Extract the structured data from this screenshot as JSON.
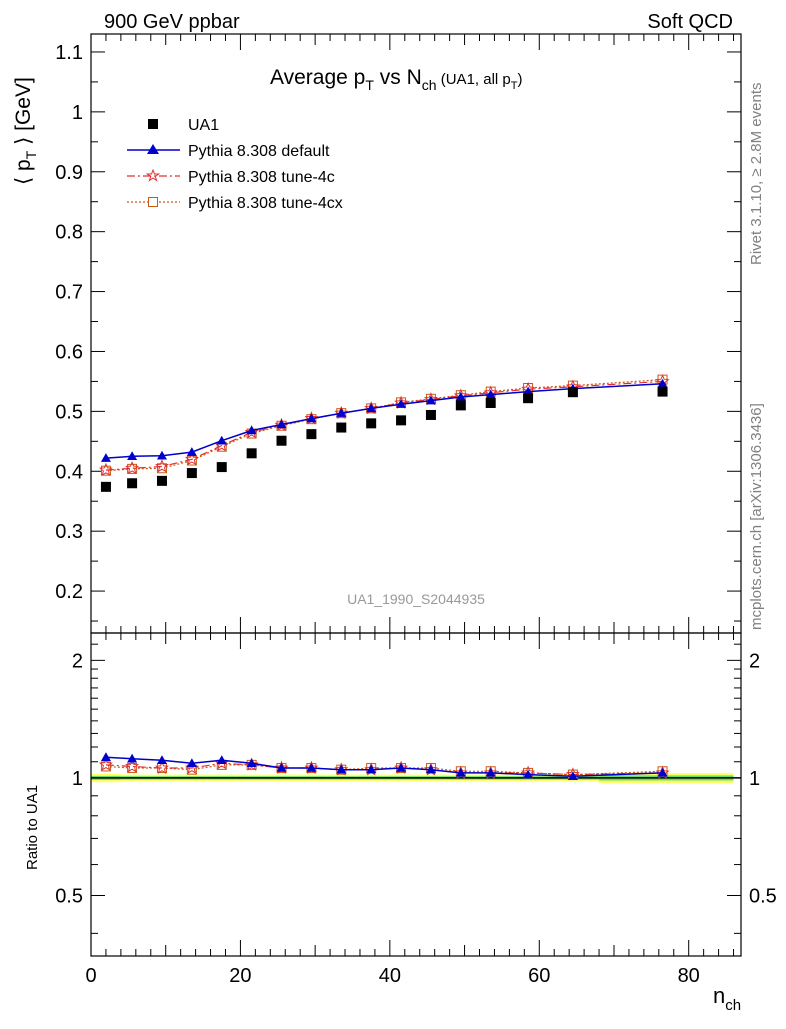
{
  "header": {
    "left": "900 GeV ppbar",
    "right": "Soft QCD"
  },
  "side_labels": {
    "rivet": "Rivet 3.1.10, ≥ 2.8M events",
    "mcplots": "mcplots.cern.ch [arXiv:1306.3436]"
  },
  "title": {
    "main_a": "Average p",
    "main_sub_t": "T",
    "main_b": " vs N",
    "main_sub_ch": "ch",
    "small_a": " (UA1, all p",
    "small_sub_t": "T",
    "small_b": ")"
  },
  "watermark": "UA1_1990_S2044935",
  "axes": {
    "ylabel_top_main": "⟨ p",
    "ylabel_top_sub": "T",
    "ylabel_top_tail": " ⟩ [GeV]",
    "ylabel_bottom": "Ratio to UA1",
    "xlabel_main": "n",
    "xlabel_sub": "ch",
    "xlim": [
      0,
      87
    ],
    "ylim_top": [
      0.13,
      1.13
    ],
    "ylim_bottom": [
      0.35,
      2.35
    ],
    "y_ticks_top": [
      "0.2",
      "0.3",
      "0.4",
      "0.5",
      "0.6",
      "0.7",
      "0.8",
      "0.9",
      "1",
      "1.1"
    ],
    "y_ticks_bottom": [
      "0.5",
      "1",
      "2"
    ],
    "x_ticks": [
      "0",
      "20",
      "40",
      "60",
      "80"
    ]
  },
  "legend": {
    "ua1": "UA1",
    "default": "Pythia 8.308 default",
    "tune4c": "Pythia 8.308 tune-4c",
    "tune4cx": "Pythia 8.308 tune-4cx"
  },
  "colors": {
    "data": "#000000",
    "default": "#0000cc",
    "tune4c": "#e03030",
    "tune4cx": "#c85a14",
    "band_outer": "#ffff66",
    "band_inner": "#66dd66"
  },
  "chart_data": {
    "type": "scatter",
    "x": [
      2,
      5.5,
      9.5,
      13.5,
      17.5,
      21.5,
      25.5,
      29.5,
      33.5,
      37.5,
      41.5,
      45.5,
      49.5,
      53.5,
      58.5,
      64.5,
      76.5
    ],
    "series": [
      {
        "name": "UA1",
        "values": [
          0.374,
          0.38,
          0.384,
          0.397,
          0.407,
          0.43,
          0.451,
          0.462,
          0.473,
          0.48,
          0.485,
          0.494,
          0.51,
          0.514,
          0.522,
          0.532,
          0.533
        ]
      },
      {
        "name": "Pythia 8.308 default",
        "values": [
          0.422,
          0.425,
          0.426,
          0.432,
          0.451,
          0.468,
          0.478,
          0.488,
          0.497,
          0.505,
          0.512,
          0.518,
          0.524,
          0.528,
          0.533,
          0.538,
          0.546
        ]
      },
      {
        "name": "Pythia 8.308 tune-4c",
        "values": [
          0.402,
          0.405,
          0.408,
          0.42,
          0.443,
          0.465,
          0.477,
          0.488,
          0.497,
          0.505,
          0.514,
          0.52,
          0.526,
          0.531,
          0.537,
          0.541,
          0.55
        ]
      },
      {
        "name": "Pythia 8.308 tune-4cx",
        "values": [
          0.401,
          0.404,
          0.405,
          0.418,
          0.441,
          0.463,
          0.476,
          0.487,
          0.497,
          0.505,
          0.515,
          0.521,
          0.527,
          0.533,
          0.539,
          0.543,
          0.553
        ]
      }
    ],
    "ratio_series": [
      {
        "name": "Pythia 8.308 default",
        "values": [
          1.13,
          1.12,
          1.11,
          1.09,
          1.11,
          1.09,
          1.06,
          1.06,
          1.05,
          1.05,
          1.06,
          1.05,
          1.03,
          1.03,
          1.02,
          1.01,
          1.03
        ]
      },
      {
        "name": "Pythia 8.308 tune-4c",
        "values": [
          1.08,
          1.07,
          1.06,
          1.06,
          1.09,
          1.08,
          1.06,
          1.06,
          1.05,
          1.05,
          1.06,
          1.05,
          1.03,
          1.03,
          1.03,
          1.02,
          1.03
        ]
      },
      {
        "name": "Pythia 8.308 tune-4cx",
        "values": [
          1.07,
          1.06,
          1.06,
          1.05,
          1.08,
          1.08,
          1.06,
          1.06,
          1.05,
          1.06,
          1.06,
          1.06,
          1.04,
          1.04,
          1.03,
          1.02,
          1.04
        ]
      }
    ],
    "log_y_bottom": true
  }
}
